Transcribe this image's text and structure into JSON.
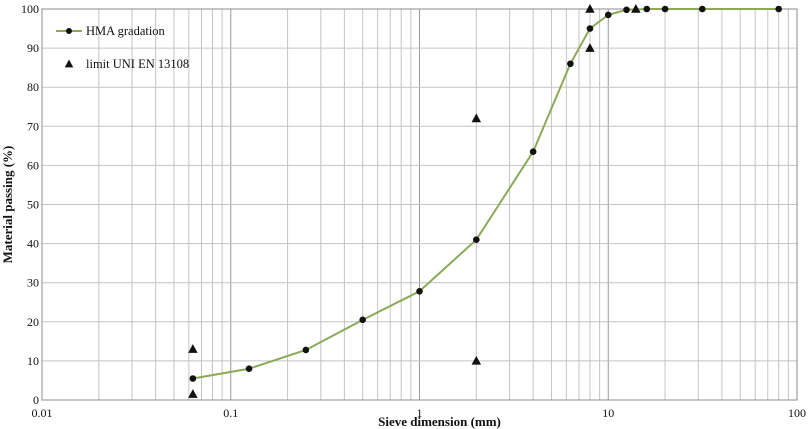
{
  "chart_data": {
    "type": "line",
    "xlabel": "Sieve dimension (mm)",
    "ylabel": "Material passing (%)",
    "xscale": "log",
    "xlim": [
      0.01,
      100
    ],
    "ylim": [
      0,
      100
    ],
    "grid": true,
    "legend_position": "top-left",
    "x_tick_labels": [
      "0.01",
      "0.1",
      "1",
      "10",
      "100"
    ],
    "y_tick_labels": [
      "0",
      "10",
      "20",
      "30",
      "40",
      "50",
      "60",
      "70",
      "80",
      "90",
      "100"
    ],
    "series": [
      {
        "name": "HMA gradation",
        "style": "line-with-circles",
        "color": "#8aaa58",
        "marker_color": "#111111",
        "points": [
          {
            "x": 0.063,
            "y": 5.5
          },
          {
            "x": 0.125,
            "y": 8
          },
          {
            "x": 0.25,
            "y": 12.8
          },
          {
            "x": 0.5,
            "y": 20.5
          },
          {
            "x": 1,
            "y": 27.8
          },
          {
            "x": 2,
            "y": 41
          },
          {
            "x": 4,
            "y": 63.5
          },
          {
            "x": 6.3,
            "y": 86
          },
          {
            "x": 8,
            "y": 95
          },
          {
            "x": 10,
            "y": 98.5
          },
          {
            "x": 12.5,
            "y": 99.8
          },
          {
            "x": 16,
            "y": 100
          },
          {
            "x": 20,
            "y": 100
          },
          {
            "x": 31.5,
            "y": 100
          },
          {
            "x": 80,
            "y": 100
          }
        ]
      },
      {
        "name": "limit UNI EN 13108",
        "style": "triangles",
        "color": "#111111",
        "points": [
          {
            "x": 0.063,
            "y": 13
          },
          {
            "x": 0.063,
            "y": 1.5
          },
          {
            "x": 2,
            "y": 72
          },
          {
            "x": 2,
            "y": 10
          },
          {
            "x": 8,
            "y": 100
          },
          {
            "x": 8,
            "y": 90
          },
          {
            "x": 14,
            "y": 100
          }
        ]
      }
    ]
  }
}
